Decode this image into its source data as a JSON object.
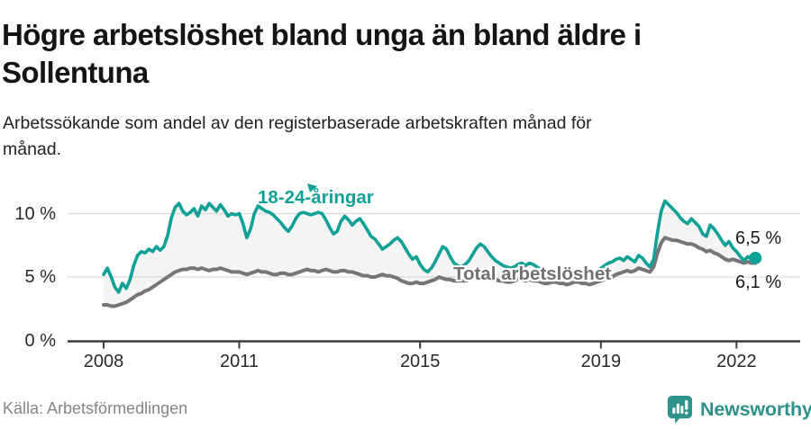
{
  "header": {
    "title": "Högre arbetslöshet bland unga än bland äldre i\nSollentuna",
    "subtitle": "Arbetssökande som andel av den registerbaserade arbetskraften månad för\nmånad."
  },
  "chart_data": {
    "type": "line",
    "x_start_year": 2008,
    "x_step_months": 1,
    "x_ticks": [
      "2008",
      "2011",
      "2015",
      "2019",
      "2022"
    ],
    "x_tick_years": [
      2008,
      2011,
      2015,
      2019,
      2022
    ],
    "y_ticks": [
      "0 %",
      "5 %",
      "10 %"
    ],
    "y_tick_values": [
      0,
      5,
      10
    ],
    "ylim": [
      0,
      12
    ],
    "xlim": [
      2008,
      2022.6
    ],
    "grid": "horizontal",
    "legend_position": "inline-labels",
    "style": {
      "band_fill": "#f4f4f4",
      "grid_color": "#d9d9d9",
      "axis_color": "#3c3c3c"
    },
    "series": [
      {
        "name": "18-24-åringar",
        "color": "#0fa096",
        "values": [
          5.2,
          5.7,
          5.0,
          4.2,
          3.8,
          4.5,
          4.1,
          4.8,
          5.9,
          6.7,
          7.0,
          6.9,
          7.2,
          7.0,
          7.4,
          7.1,
          7.4,
          8.3,
          9.7,
          10.5,
          10.8,
          10.2,
          9.9,
          10.1,
          10.4,
          9.8,
          10.6,
          10.3,
          10.8,
          10.5,
          10.2,
          10.7,
          10.3,
          9.8,
          10.0,
          9.9,
          10.0,
          9.2,
          8.1,
          8.8,
          10.0,
          10.6,
          10.4,
          10.2,
          10.1,
          9.9,
          9.6,
          9.3,
          8.9,
          8.6,
          9.0,
          9.6,
          10.0,
          10.1,
          10.0,
          9.9,
          10.0,
          10.1,
          10.0,
          9.5,
          8.9,
          8.4,
          8.6,
          9.4,
          9.8,
          9.5,
          9.1,
          9.4,
          9.6,
          9.2,
          8.7,
          8.2,
          8.0,
          7.6,
          7.2,
          7.4,
          7.6,
          7.9,
          8.1,
          7.8,
          7.3,
          6.8,
          6.4,
          6.6,
          6.0,
          5.6,
          5.4,
          5.7,
          6.2,
          6.8,
          7.4,
          7.2,
          6.6,
          6.1,
          5.9,
          5.8,
          6.0,
          6.3,
          6.8,
          7.3,
          7.6,
          7.4,
          7.0,
          6.6,
          6.3,
          6.1,
          5.9,
          5.8,
          5.7,
          5.8,
          6.0,
          6.1,
          5.9,
          6.1,
          6.0,
          5.8,
          5.6,
          5.5,
          5.4,
          5.5,
          5.5,
          5.4,
          5.3,
          5.2,
          5.3,
          5.5,
          5.6,
          5.5,
          5.3,
          5.2,
          5.3,
          5.5,
          5.7,
          5.9,
          6.1,
          6.2,
          6.4,
          6.5,
          6.3,
          6.6,
          6.4,
          6.2,
          6.7,
          6.5,
          6.1,
          5.8,
          6.4,
          8.5,
          10.2,
          11.0,
          10.7,
          10.4,
          10.1,
          9.7,
          9.4,
          9.2,
          9.6,
          9.3,
          9.0,
          8.4,
          8.2,
          9.1,
          8.8,
          8.4,
          7.9,
          7.5,
          7.8,
          7.3,
          7.0,
          6.6,
          6.3,
          6.6,
          6.4,
          6.5
        ]
      },
      {
        "name": "Total arbetslöshet",
        "color": "#76767a",
        "values": [
          2.8,
          2.8,
          2.7,
          2.7,
          2.8,
          2.9,
          3.0,
          3.2,
          3.4,
          3.6,
          3.7,
          3.9,
          4.0,
          4.2,
          4.4,
          4.6,
          4.8,
          5.0,
          5.2,
          5.4,
          5.5,
          5.6,
          5.6,
          5.7,
          5.7,
          5.6,
          5.7,
          5.6,
          5.5,
          5.6,
          5.6,
          5.7,
          5.6,
          5.5,
          5.4,
          5.4,
          5.4,
          5.3,
          5.2,
          5.3,
          5.4,
          5.5,
          5.4,
          5.4,
          5.3,
          5.2,
          5.2,
          5.3,
          5.3,
          5.2,
          5.2,
          5.3,
          5.4,
          5.5,
          5.6,
          5.5,
          5.5,
          5.4,
          5.5,
          5.6,
          5.5,
          5.4,
          5.4,
          5.5,
          5.5,
          5.4,
          5.4,
          5.3,
          5.2,
          5.1,
          5.1,
          5.0,
          5.0,
          5.1,
          5.2,
          5.1,
          5.1,
          5.0,
          4.9,
          4.7,
          4.6,
          4.5,
          4.5,
          4.6,
          4.5,
          4.5,
          4.6,
          4.7,
          4.8,
          5.0,
          4.9,
          4.8,
          4.8,
          4.7,
          4.7,
          4.7,
          4.7,
          4.8,
          4.9,
          5.0,
          5.0,
          4.9,
          4.9,
          4.8,
          4.8,
          4.7,
          4.7,
          4.6,
          4.6,
          4.7,
          4.8,
          4.8,
          4.7,
          4.8,
          4.7,
          4.7,
          4.6,
          4.5,
          4.5,
          4.6,
          4.6,
          4.5,
          4.5,
          4.4,
          4.5,
          4.6,
          4.6,
          4.5,
          4.5,
          4.4,
          4.5,
          4.6,
          4.7,
          4.8,
          4.9,
          5.0,
          5.2,
          5.3,
          5.4,
          5.5,
          5.4,
          5.5,
          5.7,
          5.6,
          5.5,
          5.4,
          5.8,
          6.9,
          7.7,
          8.1,
          8.0,
          7.9,
          7.9,
          7.8,
          7.7,
          7.6,
          7.6,
          7.5,
          7.3,
          7.2,
          7.0,
          7.1,
          6.9,
          6.8,
          6.6,
          6.4,
          6.3,
          6.4,
          6.3,
          6.2,
          6.1,
          6.2,
          6.1,
          6.1
        ]
      }
    ],
    "end_labels": {
      "youth": "6,5 %",
      "total": "6,1 %"
    },
    "end_marker": {
      "series": "18-24-åringar",
      "shape": "circle",
      "color": "#0fa096"
    }
  },
  "footer": {
    "source": "Källa: Arbetsförmedlingen",
    "brand": "Newsworthy",
    "brand_color": "#2e918a",
    "brand_icon": "bar-chart-speech-bubble"
  }
}
